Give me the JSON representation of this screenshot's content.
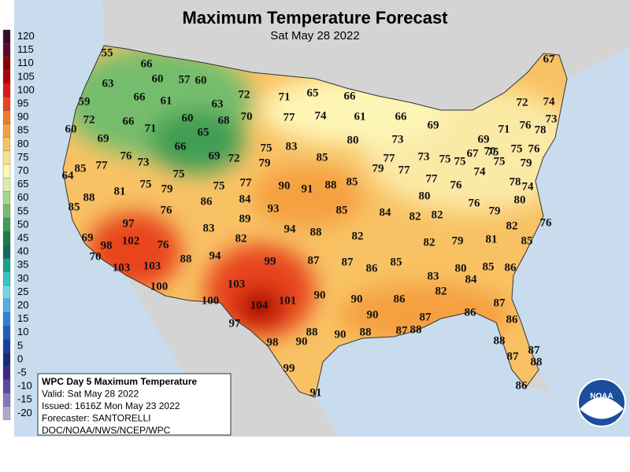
{
  "header": {
    "title": "Maximum Temperature Forecast",
    "subtitle": "Sat May 28 2022"
  },
  "legend": {
    "labels": [
      120,
      115,
      110,
      105,
      100,
      95,
      90,
      85,
      80,
      75,
      70,
      65,
      60,
      55,
      50,
      45,
      40,
      35,
      30,
      25,
      20,
      15,
      10,
      5,
      0,
      -5,
      -10,
      -15,
      -20
    ],
    "colors": [
      "#3a0a2a",
      "#5c0a2e",
      "#8b0000",
      "#b30000",
      "#d7191c",
      "#e8451f",
      "#f07a2a",
      "#f5a040",
      "#f8c264",
      "#fbe08f",
      "#fdf5b5",
      "#d9edb0",
      "#a8d68a",
      "#74bd6c",
      "#3f9e55",
      "#1c7c43",
      "#0f6b5a",
      "#17a08f",
      "#35c4c0",
      "#6ed7e8",
      "#4eb0e8",
      "#2a84d8",
      "#1f5fc0",
      "#1a3ea0",
      "#182a80",
      "#3b2a8a",
      "#5a4a9e",
      "#8078b8",
      "#b0a8d0"
    ]
  },
  "info_box": {
    "lines": [
      "WPC Day 5 Maximum Temperature",
      "Valid: Sat May 28 2022",
      "Issued: 1616Z Mon May 23 2022",
      "Forecaster: SANTORELLI",
      "DOC/NOAA/NWS/NCEP/WPC"
    ]
  },
  "logo": {
    "text": "NOAA"
  },
  "map_labels": [
    55,
    66,
    67,
    57,
    60,
    60,
    63,
    65,
    66,
    72,
    59,
    66,
    61,
    63,
    72,
    74,
    71,
    72,
    66,
    60,
    68,
    70,
    77,
    74,
    61,
    66,
    69,
    76,
    78,
    73,
    60,
    71,
    65,
    69,
    80,
    73,
    71,
    69,
    66,
    75,
    83,
    75,
    67,
    70,
    75,
    76,
    76,
    69,
    72,
    85,
    77,
    73,
    75,
    75,
    73,
    79,
    79,
    77,
    74,
    75,
    79,
    85,
    77,
    75,
    64,
    77,
    90,
    91,
    88,
    85,
    77,
    76,
    78,
    74,
    81,
    75,
    79,
    75,
    88,
    84,
    80,
    80,
    86,
    76,
    85,
    76,
    93,
    85,
    84,
    82,
    82,
    79,
    89,
    97,
    83,
    94,
    88,
    82,
    76,
    69,
    102,
    76,
    82,
    82,
    82,
    79,
    81,
    85,
    98,
    70,
    88,
    94,
    99,
    87,
    87,
    85,
    103,
    103,
    86,
    85,
    86,
    80,
    83,
    84,
    100,
    103,
    101,
    90,
    82,
    100,
    104,
    90,
    86,
    87,
    90,
    87,
    86,
    97,
    88,
    87,
    88,
    86,
    98,
    90,
    90,
    88,
    88,
    87,
    87,
    88,
    99,
    86,
    91
  ]
}
